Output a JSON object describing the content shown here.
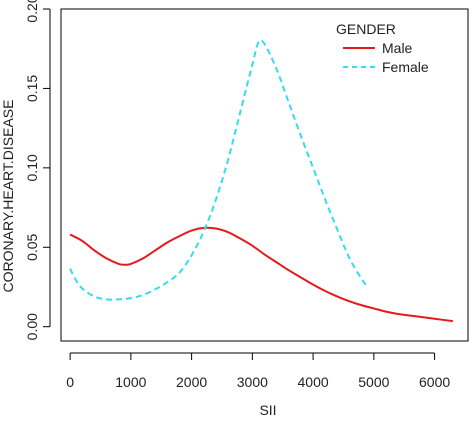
{
  "chart_data": {
    "type": "line",
    "title": "",
    "xlabel": "SII",
    "ylabel": "CORONARY.HEART.DISEASE",
    "xlim": [
      -150,
      6550
    ],
    "ylim": [
      -0.009,
      0.2
    ],
    "xticks": [
      0,
      1000,
      2000,
      3000,
      4000,
      5000,
      6000
    ],
    "yticks": [
      0.0,
      0.05,
      0.1,
      0.15,
      0.2
    ],
    "ytick_labels": [
      "0.00",
      "0.05",
      "0.10",
      "0.15",
      "0.20"
    ],
    "grid": false,
    "legend": {
      "title": "GENDER",
      "position": "top-right"
    },
    "series": [
      {
        "name": "Male",
        "color": "#e41a1c",
        "dash": "solid",
        "x": [
          0,
          200,
          400,
          600,
          800,
          900,
          1000,
          1200,
          1400,
          1600,
          1800,
          2000,
          2200,
          2400,
          2600,
          2800,
          3000,
          3200,
          3400,
          3600,
          3800,
          4000,
          4200,
          4400,
          4600,
          4800,
          5000,
          5200,
          5400,
          5600,
          5800,
          6000,
          6300
        ],
        "y": [
          0.058,
          0.054,
          0.048,
          0.043,
          0.0395,
          0.039,
          0.0395,
          0.043,
          0.048,
          0.053,
          0.057,
          0.0605,
          0.0622,
          0.0618,
          0.0595,
          0.0555,
          0.051,
          0.0455,
          0.0405,
          0.0355,
          0.031,
          0.0265,
          0.0225,
          0.019,
          0.016,
          0.0135,
          0.0115,
          0.0095,
          0.008,
          0.007,
          0.006,
          0.005,
          0.0035
        ]
      },
      {
        "name": "Female",
        "color": "#33ddee",
        "dash": "dashed",
        "x": [
          0,
          100,
          200,
          400,
          600,
          800,
          1000,
          1200,
          1400,
          1600,
          1800,
          2000,
          2200,
          2400,
          2600,
          2800,
          3000,
          3100,
          3200,
          3400,
          3600,
          3800,
          4000,
          4200,
          4400,
          4600,
          4800,
          4900
        ],
        "y": [
          0.0365,
          0.029,
          0.024,
          0.019,
          0.0172,
          0.0172,
          0.018,
          0.02,
          0.0235,
          0.028,
          0.034,
          0.045,
          0.06,
          0.08,
          0.105,
          0.135,
          0.165,
          0.179,
          0.178,
          0.162,
          0.141,
          0.12,
          0.1,
          0.08,
          0.061,
          0.043,
          0.03,
          0.025
        ]
      }
    ]
  }
}
